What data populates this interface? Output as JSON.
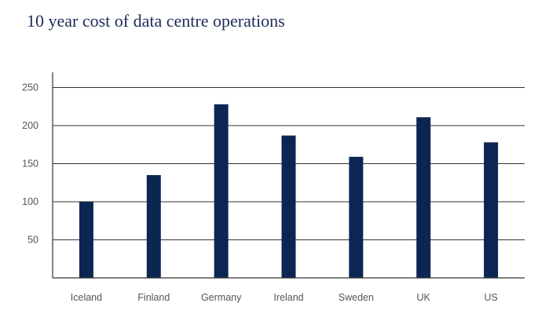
{
  "chart_data": {
    "type": "bar",
    "title": "10 year cost of data centre operations",
    "xlabel": "",
    "ylabel": "",
    "categories": [
      "Iceland",
      "Finland",
      "Germany",
      "Ireland",
      "Sweden",
      "UK",
      "US"
    ],
    "values": [
      100,
      135,
      228,
      187,
      159,
      211,
      178
    ],
    "ylim": [
      0,
      270
    ],
    "yticks": [
      50,
      100,
      150,
      200,
      250
    ],
    "grid": true,
    "legend": "none",
    "bar_color": "#0c2653"
  }
}
